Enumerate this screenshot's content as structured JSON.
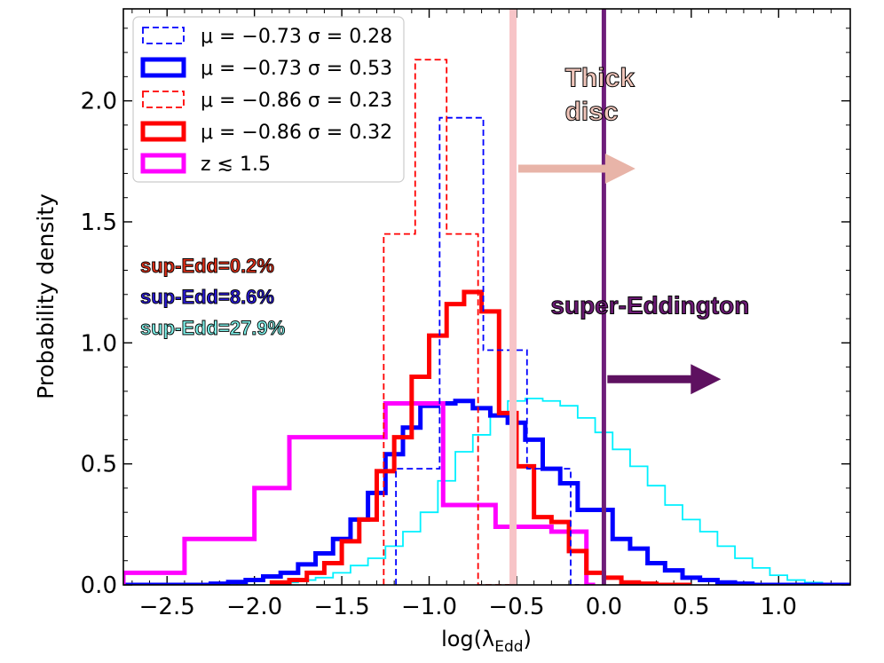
{
  "chart_data": {
    "type": "histogram",
    "xlabel": "log(λ",
    "xlabel_sub": "Edd",
    "xlabel_close": ")",
    "ylabel": "Probability density",
    "xlim": [
      -2.75,
      1.41
    ],
    "ylim": [
      0,
      2.38
    ],
    "xticks": [
      -2.5,
      -2.0,
      -1.5,
      -1.0,
      -0.5,
      0.0,
      0.5,
      1.0
    ],
    "xtick_labels": [
      "−2.5",
      "−2.0",
      "−1.5",
      "−1.0",
      "−0.5",
      "0.0",
      "0.5",
      "1.0"
    ],
    "yticks": [
      0.0,
      0.5,
      1.0,
      1.5,
      2.0
    ],
    "ytick_labels": [
      "0.0",
      "0.5",
      "1.0",
      "1.5",
      "2.0"
    ],
    "vlines": [
      {
        "x": -0.52,
        "color": "#f7c4c7",
        "label": "thick-disc-line"
      },
      {
        "x": 0.0,
        "color": "#6e1d7a",
        "label": "super-eddington-line"
      }
    ],
    "arrows": [
      {
        "x0": -0.49,
        "x1": 0.18,
        "y": 1.72,
        "color": "#e8b4a8",
        "label": "thick-disc-arrow"
      },
      {
        "x0": 0.02,
        "x1": 0.67,
        "y": 0.85,
        "color": "#5e1160",
        "label": "super-eddington-arrow"
      }
    ],
    "annotations": [
      {
        "text": "Thick",
        "x": -0.05,
        "y": 2.06,
        "color": "#f1c6bb"
      },
      {
        "text": "disc",
        "x": -0.05,
        "y": 1.92,
        "color": "#f1c6bb"
      },
      {
        "text": "super-Eddington",
        "x": 0.0,
        "y": 1.12,
        "color": "#6a1a73"
      }
    ],
    "sup_edd_labels": [
      {
        "text": "sup-Edd=0.2%",
        "color": "#e03018"
      },
      {
        "text": "sup-Edd=8.6%",
        "color": "#2a1ad8"
      },
      {
        "text": "sup-Edd=27.9%",
        "color": "#7df0e8"
      }
    ],
    "legend_location": "top-left",
    "series": [
      {
        "name": "μ = −0.73 σ = 0.28",
        "color": "#0000ff",
        "style": "dashed",
        "width": "thin",
        "in_legend": true,
        "edges": [
          -1.19,
          -0.94,
          -0.69,
          -0.44,
          -0.19,
          -0.14
        ],
        "values": [
          0.48,
          1.93,
          0.97,
          0.48,
          0.0
        ]
      },
      {
        "name": "μ = −0.73 σ = 0.53",
        "color": "#0000ff",
        "style": "solid",
        "width": "thick",
        "in_legend": true,
        "edges": [
          -2.75,
          -2.25,
          -2.15,
          -2.05,
          -1.95,
          -1.85,
          -1.75,
          -1.65,
          -1.55,
          -1.45,
          -1.35,
          -1.25,
          -1.15,
          -1.05,
          -0.95,
          -0.85,
          -0.75,
          -0.65,
          -0.55,
          -0.45,
          -0.35,
          -0.25,
          -0.15,
          -0.05,
          0.05,
          0.15,
          0.25,
          0.35,
          0.45,
          0.55,
          0.65,
          0.75,
          0.85,
          1.41
        ],
        "values": [
          0.0,
          0.005,
          0.012,
          0.02,
          0.035,
          0.05,
          0.085,
          0.13,
          0.19,
          0.27,
          0.38,
          0.54,
          0.65,
          0.74,
          0.75,
          0.76,
          0.73,
          0.7,
          0.67,
          0.6,
          0.48,
          0.42,
          0.31,
          0.31,
          0.19,
          0.15,
          0.09,
          0.06,
          0.03,
          0.02,
          0.01,
          0.005,
          0.0
        ]
      },
      {
        "name": "μ = −0.86 σ = 0.23",
        "color": "#ff0000",
        "style": "dashed",
        "width": "thin",
        "in_legend": true,
        "edges": [
          -1.26,
          -1.08,
          -0.9,
          -0.72,
          -0.54
        ],
        "values": [
          1.45,
          2.17,
          1.45,
          0.0
        ]
      },
      {
        "name": "μ = −0.86 σ = 0.32",
        "color": "#ff0000",
        "style": "solid",
        "width": "thick",
        "in_legend": true,
        "edges": [
          -1.9,
          -1.8,
          -1.7,
          -1.6,
          -1.5,
          -1.4,
          -1.3,
          -1.2,
          -1.1,
          -1.0,
          -0.9,
          -0.8,
          -0.7,
          -0.6,
          -0.5,
          -0.4,
          -0.3,
          -0.2,
          -0.1,
          0.0,
          0.1,
          0.2,
          0.3,
          0.5
        ],
        "values": [
          0.01,
          0.02,
          0.05,
          0.09,
          0.18,
          0.27,
          0.47,
          0.61,
          0.86,
          1.03,
          1.16,
          1.21,
          1.13,
          0.71,
          0.49,
          0.28,
          0.26,
          0.14,
          0.05,
          0.03,
          0.01,
          0.005,
          0.0
        ]
      },
      {
        "name": "z ≲ 1.5",
        "color": "#ff00ff",
        "style": "solid",
        "width": "thick",
        "in_legend": true,
        "edges": [
          -2.75,
          -2.4,
          -2.0,
          -1.8,
          -1.25,
          -0.92,
          -0.62,
          -0.3,
          -0.1,
          -0.05
        ],
        "values": [
          0.05,
          0.19,
          0.4,
          0.61,
          0.75,
          0.33,
          0.24,
          0.22,
          0.0
        ]
      },
      {
        "name": "z > 1.5 (cyan)",
        "color": "#00f0ff",
        "style": "solid",
        "width": "thin",
        "in_legend": false,
        "edges": [
          -2.75,
          -1.85,
          -1.75,
          -1.65,
          -1.55,
          -1.45,
          -1.35,
          -1.25,
          -1.15,
          -1.05,
          -0.95,
          -0.85,
          -0.75,
          -0.65,
          -0.55,
          -0.45,
          -0.35,
          -0.25,
          -0.15,
          -0.05,
          0.05,
          0.15,
          0.25,
          0.35,
          0.45,
          0.55,
          0.65,
          0.75,
          0.85,
          0.95,
          1.05,
          1.15,
          1.25,
          1.41
        ],
        "values": [
          0.0,
          0.01,
          0.02,
          0.03,
          0.05,
          0.08,
          0.11,
          0.16,
          0.22,
          0.3,
          0.43,
          0.55,
          0.62,
          0.7,
          0.76,
          0.77,
          0.76,
          0.74,
          0.69,
          0.63,
          0.56,
          0.49,
          0.41,
          0.33,
          0.27,
          0.22,
          0.16,
          0.11,
          0.07,
          0.04,
          0.02,
          0.01,
          0.0
        ]
      }
    ]
  }
}
